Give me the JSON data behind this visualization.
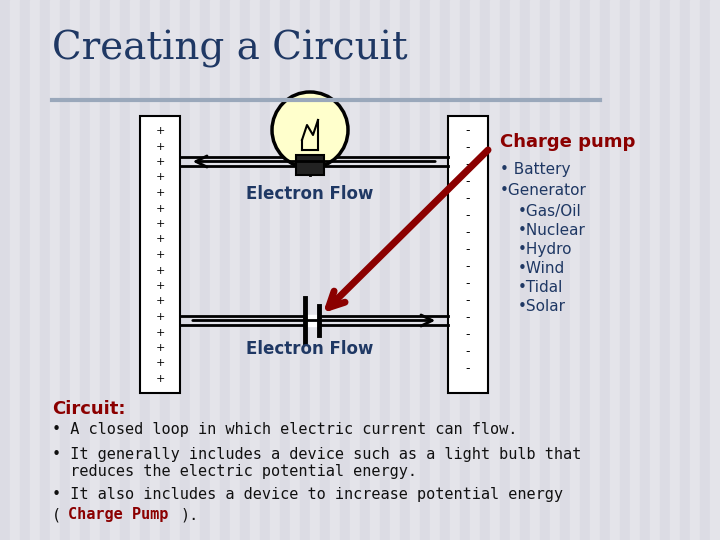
{
  "title": "Creating a Circuit",
  "title_color": "#1F3864",
  "title_fontsize": 28,
  "bg_light": "#E8E8EC",
  "bg_dark": "#D8D8E0",
  "charge_pump_label": "Charge pump",
  "charge_pump_color": "#8B0000",
  "dark_navy": "#1F3864",
  "arrow1_label": "Electron Flow",
  "arrow2_label": "Electron Flow",
  "circuit_label": "Circuit:",
  "circuit_label_color": "#8B0000",
  "body_color": "#111111",
  "line_color": "#9AA8BB"
}
